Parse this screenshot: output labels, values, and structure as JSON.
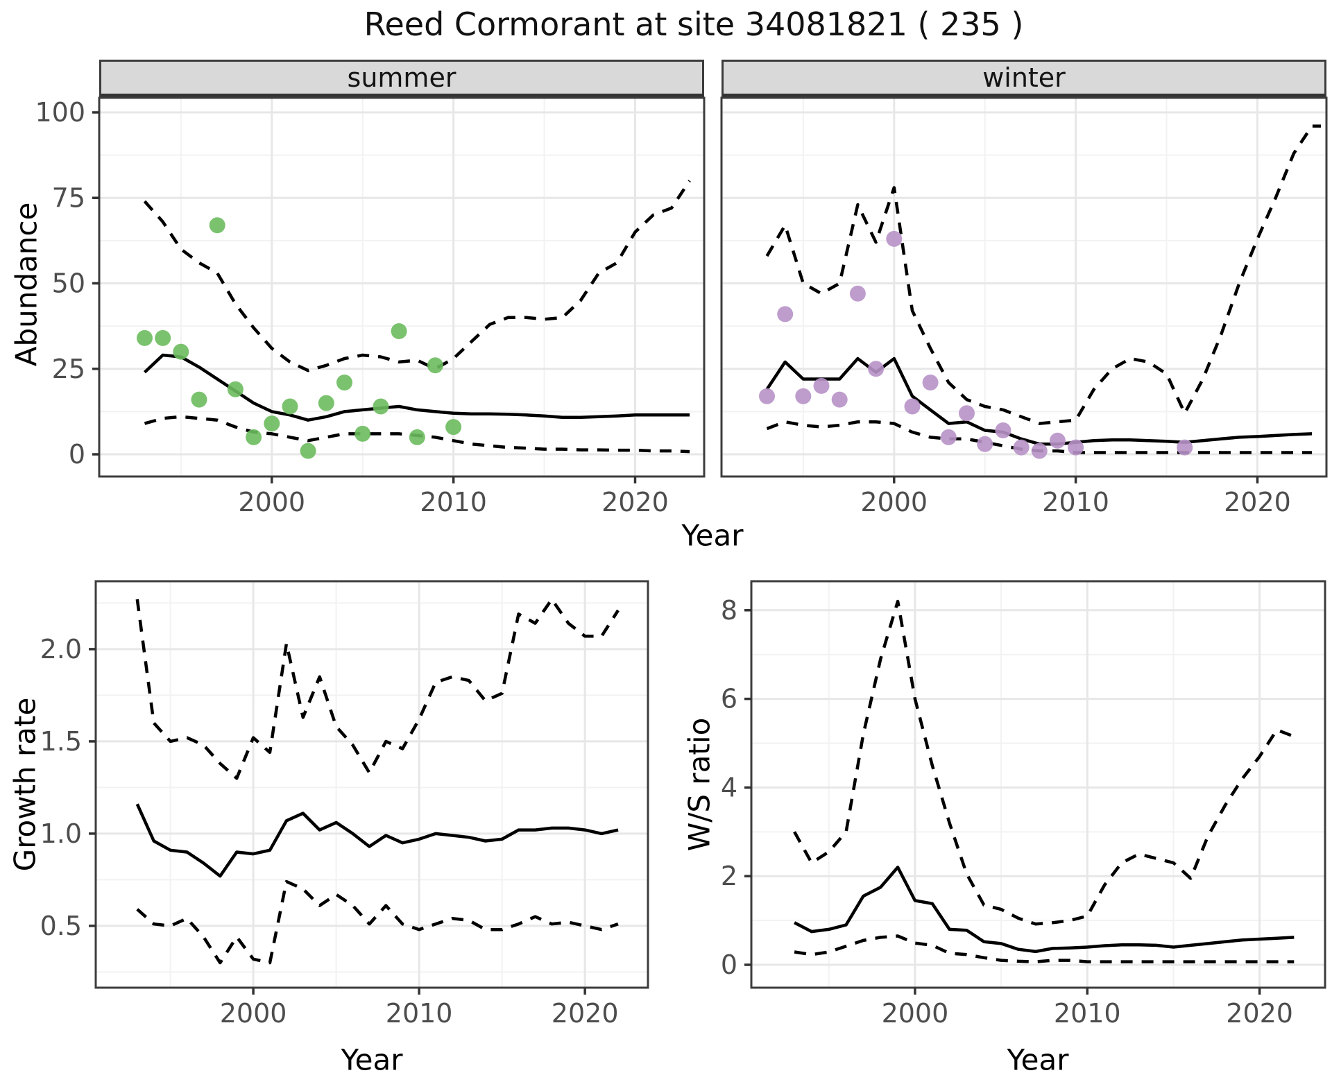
{
  "title": "Reed Cormorant at site 34081821 ( 235 )",
  "axes": {
    "abundance_label": "Abundance",
    "year_label": "Year",
    "growth_label": "Growth rate",
    "ws_label": "W/S ratio"
  },
  "colors": {
    "summer_point": "#6cbb5e",
    "winter_point": "#b792c8",
    "line": "#000000",
    "strip_bg": "#d9d9d9",
    "grid_major": "#e7e7e7",
    "grid_minor": "#f2f2f2",
    "panel_border": "#3c3c3c",
    "axis_text": "#4d4d4d"
  },
  "chart_data": [
    {
      "type": "line",
      "strip": "summer",
      "xlabel": "Year",
      "ylabel": "Abundance",
      "ylim": [
        0,
        100
      ],
      "ytick_values": [
        0,
        25,
        50,
        75,
        100
      ],
      "ytick_labels": [
        "0",
        "25",
        "50",
        "75",
        "100"
      ],
      "ytick_minor": [
        12.5,
        37.5,
        62.5,
        87.5
      ],
      "xtick_values": [
        2000,
        2010,
        2020
      ],
      "xtick_labels": [
        "2000",
        "2010",
        "2020"
      ],
      "xtick_minor": [
        1995,
        2005,
        2015
      ],
      "series": [
        {
          "name": "upper-ci",
          "style": "dashed",
          "x": [
            1993,
            1994,
            1995,
            1996,
            1997,
            1998,
            1999,
            2000,
            2001,
            2002,
            2003,
            2004,
            2005,
            2006,
            2007,
            2008,
            2009,
            2010,
            2011,
            2012,
            2013,
            2014,
            2015,
            2016,
            2017,
            2018,
            2019,
            2020,
            2021,
            2022,
            2023
          ],
          "y": [
            74,
            68,
            60,
            56,
            53,
            44,
            37,
            31,
            27,
            24.5,
            26,
            28,
            29,
            28.5,
            27,
            27.5,
            25,
            28,
            33,
            38,
            40,
            40,
            39.5,
            40,
            45,
            53,
            56,
            65,
            70,
            72,
            80
          ]
        },
        {
          "name": "lower-ci",
          "style": "dashed",
          "x": [
            1993,
            1994,
            1995,
            1996,
            1997,
            1998,
            1999,
            2000,
            2001,
            2002,
            2003,
            2004,
            2005,
            2006,
            2007,
            2008,
            2009,
            2010,
            2011,
            2012,
            2013,
            2014,
            2015,
            2016,
            2017,
            2018,
            2019,
            2020,
            2021,
            2022,
            2023
          ],
          "y": [
            9,
            10.5,
            11,
            10.5,
            10,
            8,
            6.5,
            6,
            5,
            4,
            5,
            6,
            6,
            6,
            6,
            5.5,
            5,
            4,
            3,
            2.5,
            2,
            1.8,
            1.5,
            1.5,
            1.3,
            1.3,
            1.2,
            1.2,
            1,
            1,
            0.8
          ]
        },
        {
          "name": "fit",
          "style": "solid",
          "x": [
            1993,
            1994,
            1995,
            1996,
            1997,
            1998,
            1999,
            2000,
            2001,
            2002,
            2003,
            2004,
            2005,
            2006,
            2007,
            2008,
            2009,
            2010,
            2011,
            2012,
            2013,
            2014,
            2015,
            2016,
            2017,
            2018,
            2019,
            2020,
            2021,
            2022,
            2023
          ],
          "y": [
            24,
            29,
            28.5,
            25.5,
            22,
            18.5,
            15,
            12.5,
            11.5,
            10,
            11,
            12.5,
            13,
            13.5,
            14,
            13,
            12.5,
            12,
            11.8,
            11.8,
            11.7,
            11.5,
            11.2,
            10.8,
            10.8,
            11,
            11.2,
            11.5,
            11.5,
            11.5,
            11.5
          ]
        },
        {
          "name": "observed",
          "style": "points",
          "color": "#6cbb5e",
          "x": [
            1993,
            1994,
            1995,
            1996,
            1997,
            1998,
            1999,
            2000,
            2001,
            2002,
            2003,
            2004,
            2005,
            2006,
            2007,
            2008,
            2009,
            2010
          ],
          "y": [
            34,
            34,
            30,
            16,
            67,
            19,
            5,
            9,
            14,
            1,
            15,
            21,
            6,
            14,
            36,
            5,
            26,
            8
          ]
        }
      ]
    },
    {
      "type": "line",
      "strip": "winter",
      "xlabel": "Year",
      "ylabel": "Abundance",
      "ylim": [
        0,
        100
      ],
      "ytick_values": [
        0,
        25,
        50,
        75,
        100
      ],
      "ytick_labels": [
        "0",
        "25",
        "50",
        "75",
        "100"
      ],
      "ytick_minor": [
        12.5,
        37.5,
        62.5,
        87.5
      ],
      "xtick_values": [
        2000,
        2010,
        2020
      ],
      "xtick_labels": [
        "2000",
        "2010",
        "2020"
      ],
      "xtick_minor": [
        1995,
        2005,
        2015
      ],
      "series": [
        {
          "name": "upper-ci",
          "style": "dashed",
          "x": [
            1993,
            1994,
            1995,
            1996,
            1997,
            1998,
            1999,
            2000,
            2001,
            2002,
            2003,
            2004,
            2005,
            2006,
            2007,
            2008,
            2009,
            2010,
            2011,
            2012,
            2013,
            2014,
            2015,
            2016,
            2017,
            2018,
            2019,
            2020,
            2021,
            2022,
            2023,
            2023.5
          ],
          "y": [
            58,
            67,
            50,
            47,
            50,
            73,
            62,
            78,
            42,
            31,
            21,
            16,
            14,
            13,
            11,
            9,
            9.5,
            10,
            19,
            25,
            28,
            27,
            23.5,
            12,
            22,
            35,
            50,
            63,
            75,
            88,
            96,
            96
          ]
        },
        {
          "name": "lower-ci",
          "style": "dashed",
          "x": [
            1993,
            1994,
            1995,
            1996,
            1997,
            1998,
            1999,
            2000,
            2001,
            2002,
            2003,
            2004,
            2005,
            2006,
            2007,
            2008,
            2009,
            2010,
            2011,
            2012,
            2013,
            2014,
            2015,
            2016,
            2017,
            2018,
            2019,
            2020,
            2021,
            2022,
            2023
          ],
          "y": [
            7.5,
            9.5,
            8.5,
            8,
            8.5,
            9.5,
            9.5,
            9,
            6.5,
            5,
            4.5,
            4.5,
            3.5,
            2.5,
            1.5,
            1,
            1,
            0.5,
            0.5,
            0.5,
            0.5,
            0.5,
            0.5,
            0.5,
            0.5,
            0.5,
            0.5,
            0.5,
            0.5,
            0.5,
            0.5
          ]
        },
        {
          "name": "fit",
          "style": "solid",
          "x": [
            1993,
            1994,
            1995,
            1996,
            1997,
            1998,
            1999,
            2000,
            2001,
            2002,
            2003,
            2004,
            2005,
            2006,
            2007,
            2008,
            2009,
            2010,
            2011,
            2012,
            2013,
            2014,
            2015,
            2016,
            2017,
            2018,
            2019,
            2020,
            2021,
            2022,
            2023
          ],
          "y": [
            19,
            27,
            22,
            22,
            22,
            28,
            24,
            28,
            17,
            13,
            9,
            9.5,
            7,
            6.5,
            4.5,
            3,
            3,
            3.5,
            4,
            4.2,
            4.2,
            4,
            3.8,
            3.5,
            4,
            4.5,
            5,
            5.2,
            5.5,
            5.8,
            6
          ]
        },
        {
          "name": "observed",
          "style": "points",
          "color": "#b792c8",
          "x": [
            1993,
            1994,
            1995,
            1996,
            1997,
            1998,
            1999,
            2000,
            2001,
            2002,
            2003,
            2004,
            2005,
            2006,
            2007,
            2008,
            2009,
            2010,
            2016
          ],
          "y": [
            17,
            41,
            17,
            20,
            16,
            47,
            25,
            63,
            14,
            21,
            5,
            12,
            3,
            7,
            2,
            1,
            4,
            2,
            2
          ]
        }
      ]
    },
    {
      "type": "line",
      "strip": "",
      "xlabel": "Year",
      "ylabel": "Growth rate",
      "ylim": [
        0.25,
        2.3
      ],
      "ytick_values": [
        0.5,
        1.0,
        1.5,
        2.0
      ],
      "ytick_labels": [
        "0.5",
        "1.0",
        "1.5",
        "2.0"
      ],
      "ytick_minor": [
        0.25,
        0.75,
        1.25,
        1.75,
        2.25
      ],
      "xtick_values": [
        2000,
        2010,
        2020
      ],
      "xtick_labels": [
        "2000",
        "2010",
        "2020"
      ],
      "xtick_minor": [
        1995,
        2005,
        2015
      ],
      "series": [
        {
          "name": "upper-ci",
          "style": "dashed",
          "x": [
            1993,
            1994,
            1995,
            1996,
            1997,
            1998,
            1999,
            2000,
            2001,
            2002,
            2003,
            2004,
            2005,
            2006,
            2007,
            2008,
            2009,
            2010,
            2011,
            2012,
            2013,
            2014,
            2015,
            2016,
            2017,
            2018,
            2019,
            2020,
            2021,
            2022
          ],
          "y": [
            2.27,
            1.6,
            1.5,
            1.52,
            1.48,
            1.38,
            1.3,
            1.52,
            1.44,
            2.03,
            1.63,
            1.85,
            1.58,
            1.48,
            1.33,
            1.5,
            1.46,
            1.62,
            1.82,
            1.85,
            1.83,
            1.72,
            1.76,
            2.19,
            2.14,
            2.27,
            2.14,
            2.07,
            2.07,
            2.21
          ]
        },
        {
          "name": "lower-ci",
          "style": "dashed",
          "x": [
            1993,
            1994,
            1995,
            1996,
            1997,
            1998,
            1999,
            2000,
            2001,
            2002,
            2003,
            2004,
            2005,
            2006,
            2007,
            2008,
            2009,
            2010,
            2011,
            2012,
            2013,
            2014,
            2015,
            2016,
            2017,
            2018,
            2019,
            2020,
            2021,
            2022
          ],
          "y": [
            0.59,
            0.51,
            0.5,
            0.54,
            0.44,
            0.3,
            0.44,
            0.32,
            0.3,
            0.74,
            0.7,
            0.61,
            0.67,
            0.61,
            0.51,
            0.61,
            0.51,
            0.48,
            0.51,
            0.54,
            0.53,
            0.48,
            0.48,
            0.51,
            0.55,
            0.51,
            0.52,
            0.5,
            0.48,
            0.51
          ]
        },
        {
          "name": "fit",
          "style": "solid",
          "x": [
            1993,
            1994,
            1995,
            1996,
            1997,
            1998,
            1999,
            2000,
            2001,
            2002,
            2003,
            2004,
            2005,
            2006,
            2007,
            2008,
            2009,
            2010,
            2011,
            2012,
            2013,
            2014,
            2015,
            2016,
            2017,
            2018,
            2019,
            2020,
            2021,
            2022
          ],
          "y": [
            1.16,
            0.96,
            0.91,
            0.9,
            0.84,
            0.77,
            0.9,
            0.89,
            0.91,
            1.07,
            1.11,
            1.02,
            1.06,
            1.0,
            0.93,
            0.99,
            0.95,
            0.97,
            1.0,
            0.99,
            0.98,
            0.96,
            0.97,
            1.02,
            1.02,
            1.03,
            1.03,
            1.02,
            1.0,
            1.02
          ]
        }
      ]
    },
    {
      "type": "line",
      "strip": "",
      "xlabel": "Year",
      "ylabel": "W/S ratio",
      "ylim": [
        0,
        8.2
      ],
      "ytick_values": [
        0,
        2,
        4,
        6,
        8
      ],
      "ytick_labels": [
        "0",
        "2",
        "4",
        "6",
        "8"
      ],
      "ytick_minor": [
        1,
        3,
        5,
        7
      ],
      "xtick_values": [
        2000,
        2010,
        2020
      ],
      "xtick_labels": [
        "2000",
        "2010",
        "2020"
      ],
      "xtick_minor": [
        1995,
        2005,
        2015
      ],
      "series": [
        {
          "name": "upper-ci",
          "style": "dashed",
          "x": [
            1993,
            1994,
            1995,
            1996,
            1997,
            1998,
            1999,
            2000,
            2001,
            2002,
            2003,
            2004,
            2005,
            2006,
            2007,
            2008,
            2009,
            2010,
            2011,
            2012,
            2013,
            2014,
            2015,
            2016,
            2017,
            2018,
            2019,
            2020,
            2021,
            2022
          ],
          "y": [
            3.0,
            2.3,
            2.55,
            3.0,
            5.2,
            6.9,
            8.2,
            6.0,
            4.5,
            3.2,
            2.05,
            1.35,
            1.25,
            1.05,
            0.92,
            0.95,
            1.0,
            1.1,
            1.8,
            2.3,
            2.5,
            2.4,
            2.3,
            1.95,
            2.9,
            3.6,
            4.2,
            4.7,
            5.3,
            5.15
          ]
        },
        {
          "name": "lower-ci",
          "style": "dashed",
          "x": [
            1993,
            1994,
            1995,
            1996,
            1997,
            1998,
            1999,
            2000,
            2001,
            2002,
            2003,
            2004,
            2005,
            2006,
            2007,
            2008,
            2009,
            2010,
            2011,
            2012,
            2013,
            2014,
            2015,
            2016,
            2017,
            2018,
            2019,
            2020,
            2021,
            2022
          ],
          "y": [
            0.29,
            0.23,
            0.29,
            0.42,
            0.55,
            0.62,
            0.65,
            0.49,
            0.44,
            0.26,
            0.23,
            0.16,
            0.1,
            0.08,
            0.07,
            0.1,
            0.1,
            0.07,
            0.07,
            0.07,
            0.07,
            0.07,
            0.07,
            0.07,
            0.07,
            0.07,
            0.07,
            0.07,
            0.07,
            0.07
          ]
        },
        {
          "name": "fit",
          "style": "solid",
          "x": [
            1993,
            1994,
            1995,
            1996,
            1997,
            1998,
            1999,
            2000,
            2001,
            2002,
            2003,
            2004,
            2005,
            2006,
            2007,
            2008,
            2009,
            2010,
            2011,
            2012,
            2013,
            2014,
            2015,
            2016,
            2017,
            2018,
            2019,
            2020,
            2021,
            2022
          ],
          "y": [
            0.95,
            0.75,
            0.8,
            0.9,
            1.55,
            1.75,
            2.2,
            1.45,
            1.38,
            0.8,
            0.78,
            0.52,
            0.48,
            0.35,
            0.3,
            0.37,
            0.38,
            0.4,
            0.43,
            0.45,
            0.45,
            0.44,
            0.4,
            0.44,
            0.48,
            0.52,
            0.56,
            0.58,
            0.6,
            0.62
          ]
        }
      ]
    }
  ]
}
